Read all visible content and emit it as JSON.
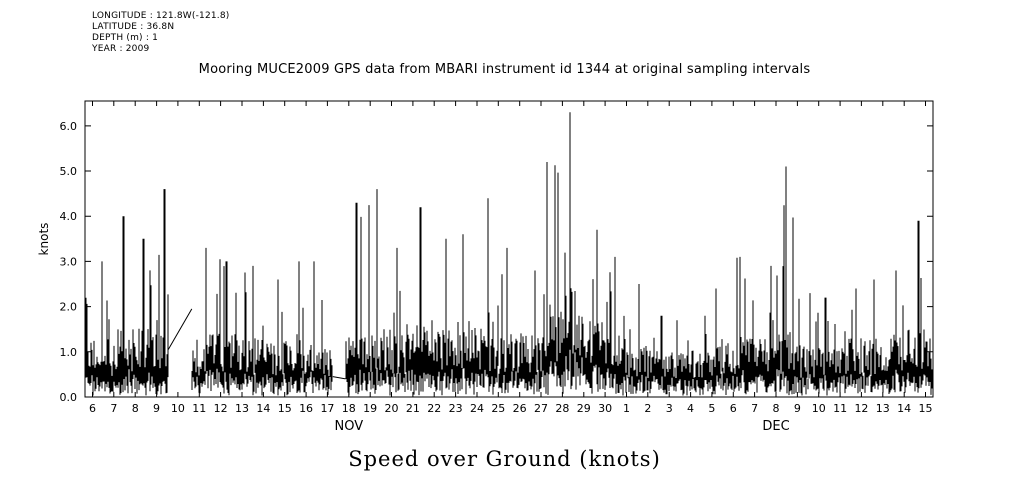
{
  "metadata": {
    "longitude": "LONGITUDE : 121.8W(-121.8)",
    "latitude": "LATITUDE : 36.8N",
    "depth": "DEPTH (m) : 1",
    "year": "YEAR : 2009"
  },
  "chart_data": {
    "type": "line",
    "title": "Mooring MUCE2009 GPS data from MBARI instrument id 1344 at original sampling intervals",
    "bottom_title": "Speed over Ground (knots)",
    "ylabel": "knots",
    "xlabel": "",
    "ylim": [
      0.0,
      6.55
    ],
    "yticks": [
      0.0,
      1.0,
      2.0,
      3.0,
      4.0,
      5.0,
      6.0
    ],
    "x_start_day": 5.65,
    "x_end_day": 45.35,
    "x_tick_labels": [
      "6",
      "7",
      "8",
      "9",
      "10",
      "11",
      "12",
      "13",
      "14",
      "15",
      "16",
      "17",
      "18",
      "19",
      "20",
      "21",
      "22",
      "23",
      "24",
      "25",
      "26",
      "27",
      "28",
      "29",
      "30",
      "1",
      "2",
      "3",
      "4",
      "5",
      "6",
      "7",
      "8",
      "9",
      "10",
      "11",
      "12",
      "13",
      "14",
      "15"
    ],
    "months": [
      {
        "label": "NOV",
        "center_day": 18
      },
      {
        "label": "DEC",
        "center_day": 38
      }
    ],
    "grid": false,
    "legend": "none",
    "axis_color": "#000000",
    "line_color": "#000000",
    "background": "#ffffff",
    "series": [
      {
        "name": "speed over ground",
        "description": "dense high-frequency GPS speed-over-ground samples; summarized here as a per-day envelope (typical mean level and daily peak, knots) for days Nov 6 - Dec 15, 2009",
        "day_labels": [
          "Nov 6",
          "Nov 7",
          "Nov 8",
          "Nov 9",
          "Nov 10",
          "Nov 11",
          "Nov 12",
          "Nov 13",
          "Nov 14",
          "Nov 15",
          "Nov 16",
          "Nov 17",
          "Nov 18",
          "Nov 19",
          "Nov 20",
          "Nov 21",
          "Nov 22",
          "Nov 23",
          "Nov 24",
          "Nov 25",
          "Nov 26",
          "Nov 27",
          "Nov 28",
          "Nov 29",
          "Nov 30",
          "Dec 1",
          "Dec 2",
          "Dec 3",
          "Dec 4",
          "Dec 5",
          "Dec 6",
          "Dec 7",
          "Dec 8",
          "Dec 9",
          "Dec 10",
          "Dec 11",
          "Dec 12",
          "Dec 13",
          "Dec 14",
          "Dec 15"
        ],
        "mean": [
          1.0,
          1.2,
          1.2,
          1.2,
          1.0,
          1.1,
          1.1,
          1.0,
          1.0,
          1.0,
          1.0,
          0.9,
          1.2,
          1.2,
          1.1,
          1.2,
          1.2,
          1.2,
          1.2,
          1.1,
          1.1,
          1.5,
          1.9,
          1.3,
          1.1,
          0.9,
          0.8,
          0.8,
          0.8,
          1.0,
          1.1,
          1.0,
          1.1,
          0.9,
          0.9,
          1.0,
          1.0,
          1.1,
          1.2,
          1.0
        ],
        "max": [
          3.0,
          4.0,
          3.5,
          4.6,
          2.0,
          3.3,
          3.0,
          2.9,
          2.6,
          3.0,
          3.0,
          2.5,
          4.3,
          4.6,
          3.3,
          4.2,
          3.5,
          3.6,
          4.4,
          3.3,
          2.8,
          5.2,
          6.3,
          3.7,
          3.1,
          2.5,
          1.8,
          1.7,
          1.8,
          2.4,
          3.1,
          2.9,
          5.1,
          2.3,
          2.2,
          2.4,
          2.6,
          2.8,
          3.9,
          2.3
        ]
      }
    ],
    "gaps": [
      {
        "start": 9.55,
        "end": 10.65,
        "start_value": 1.05,
        "end_value": 1.95
      },
      {
        "start": 17.25,
        "end": 17.85,
        "start_value": 0.45,
        "end_value": 0.4
      }
    ]
  }
}
